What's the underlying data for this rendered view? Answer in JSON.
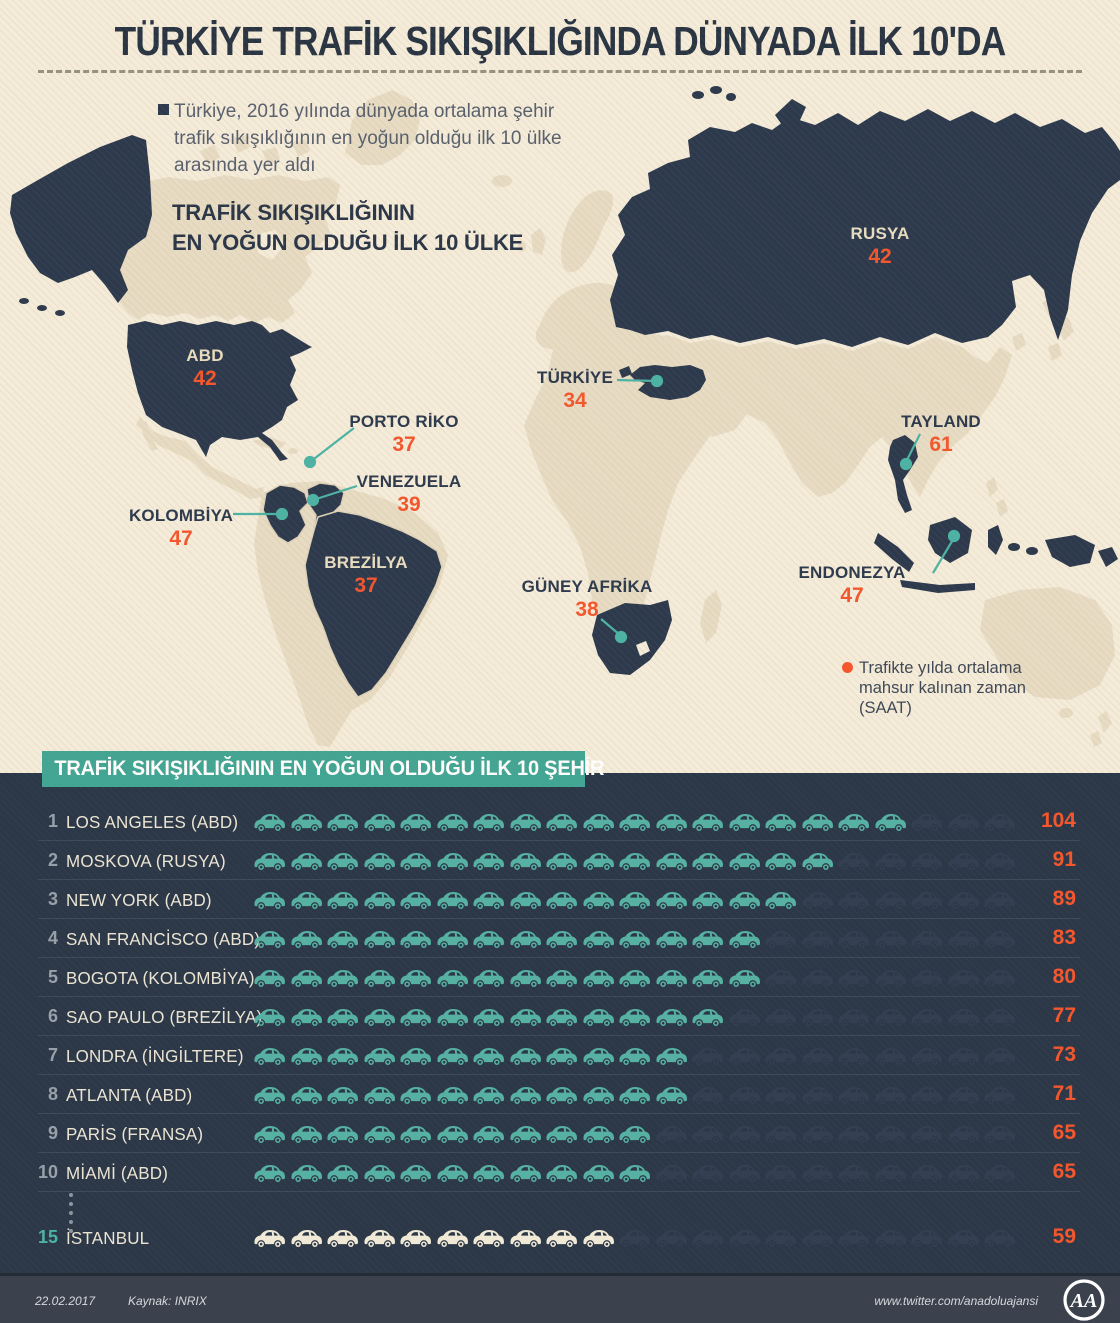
{
  "title": "TÜRKİYE TRAFİK SIKIŞIKLIĞINDA DÜNYADA İLK 10'DA",
  "intro": {
    "bullet_text": "Türkiye, 2016 yılında dünyada ortalama şehir trafik sıkışıklığının en yoğun olduğu ilk 10 ülke arasında yer aldı",
    "map_heading_line1": "TRAFİK SIKIŞIKLIĞININ",
    "map_heading_line2": "EN YOĞUN OLDUĞU İLK 10 ÜLKE"
  },
  "map": {
    "legend": {
      "line1": "Trafikte yılda ortalama",
      "line2": "mahsur kalınan zaman",
      "line3": "(SAAT)"
    },
    "countries": [
      {
        "name": "ABD",
        "value": "42"
      },
      {
        "name": "RUSYA",
        "value": "42"
      },
      {
        "name": "TÜRKİYE",
        "value": "34"
      },
      {
        "name": "PORTO RİKO",
        "value": "37"
      },
      {
        "name": "VENEZUELA",
        "value": "39"
      },
      {
        "name": "KOLOMBİYA",
        "value": "47"
      },
      {
        "name": "BREZİLYA",
        "value": "37"
      },
      {
        "name": "GÜNEY AFRİKA",
        "value": "38"
      },
      {
        "name": "TAYLAND",
        "value": "61"
      },
      {
        "name": "ENDONEZYA",
        "value": "47"
      }
    ]
  },
  "cities_section": {
    "heading": "TRAFİK SIKIŞIKLIĞININ EN YOĞUN OLDUĞU İLK 10 ŞEHİR",
    "total_car_slots": 21,
    "rows": [
      {
        "rank": "1",
        "city": "LOS ANGELES (ABD)",
        "value": "104",
        "cars_filled": 18,
        "highlight": false
      },
      {
        "rank": "2",
        "city": "MOSKOVA (RUSYA)",
        "value": "91",
        "cars_filled": 16,
        "highlight": false
      },
      {
        "rank": "3",
        "city": "NEW YORK (ABD)",
        "value": "89",
        "cars_filled": 15,
        "highlight": false
      },
      {
        "rank": "4",
        "city": "SAN FRANCİSCO (ABD)",
        "value": "83",
        "cars_filled": 14,
        "highlight": false
      },
      {
        "rank": "5",
        "city": "BOGOTA (KOLOMBİYA)",
        "value": "80",
        "cars_filled": 14,
        "highlight": false
      },
      {
        "rank": "6",
        "city": "SAO PAULO (BREZİLYA)",
        "value": "77",
        "cars_filled": 13,
        "highlight": false
      },
      {
        "rank": "7",
        "city": "LONDRA (İNGİLTERE)",
        "value": "73",
        "cars_filled": 12,
        "highlight": false
      },
      {
        "rank": "8",
        "city": "ATLANTA (ABD)",
        "value": "71",
        "cars_filled": 12,
        "highlight": false
      },
      {
        "rank": "9",
        "city": "PARİS (FRANSA)",
        "value": "65",
        "cars_filled": 11,
        "highlight": false
      },
      {
        "rank": "10",
        "city": "MİAMİ (ABD)",
        "value": "65",
        "cars_filled": 11,
        "highlight": false
      },
      {
        "rank": "15",
        "city": "İSTANBUL",
        "value": "59",
        "cars_filled": 10,
        "highlight": true
      }
    ]
  },
  "footer": {
    "date": "22.02.2017",
    "source": "Kaynak: INRIX",
    "twitter": "www.twitter.com/anadoluajansi",
    "logo_text": "AA"
  },
  "colors": {
    "accent_orange": "#f4572e",
    "accent_teal": "#4db3a4",
    "navy": "#2d3a4d",
    "cream_bg": "#f4ebd9",
    "land_beige": "#e7dcc3",
    "section_bg": "#2c3847",
    "car_filled": "#57b1a2",
    "car_empty": "#343f52",
    "car_highlight": "#f0e9d6"
  },
  "chart_data": [
    {
      "type": "map",
      "title": "TRAFİK SIKIŞIKLIĞININ EN YOĞUN OLDUĞU İLK 10 ÜLKE",
      "value_label": "Trafikte yılda ortalama mahsur kalınan zaman (SAAT)",
      "categories": [
        "ABD",
        "RUSYA",
        "TÜRKİYE",
        "PORTO RİKO",
        "VENEZUELA",
        "KOLOMBİYA",
        "BREZİLYA",
        "GÜNEY AFRİKA",
        "TAYLAND",
        "ENDONEZYA"
      ],
      "values": [
        42,
        42,
        34,
        37,
        39,
        47,
        37,
        38,
        61,
        47
      ]
    },
    {
      "type": "pictogram-bar",
      "title": "TRAFİK SIKIŞIKLIĞININ EN YOĞUN OLDUĞU İLK 10 ŞEHİR",
      "unit": "saat/yıl",
      "categories": [
        "LOS ANGELES (ABD)",
        "MOSKOVA (RUSYA)",
        "NEW YORK (ABD)",
        "SAN FRANCİSCO (ABD)",
        "BOGOTA (KOLOMBİYA)",
        "SAO PAULO (BREZİLYA)",
        "LONDRA (İNGİLTERE)",
        "ATLANTA (ABD)",
        "PARİS (FRANSA)",
        "MİAMİ (ABD)",
        "İSTANBUL"
      ],
      "ranks": [
        1,
        2,
        3,
        4,
        5,
        6,
        7,
        8,
        9,
        10,
        15
      ],
      "values": [
        104,
        91,
        89,
        83,
        80,
        77,
        73,
        71,
        65,
        65,
        59
      ]
    }
  ]
}
